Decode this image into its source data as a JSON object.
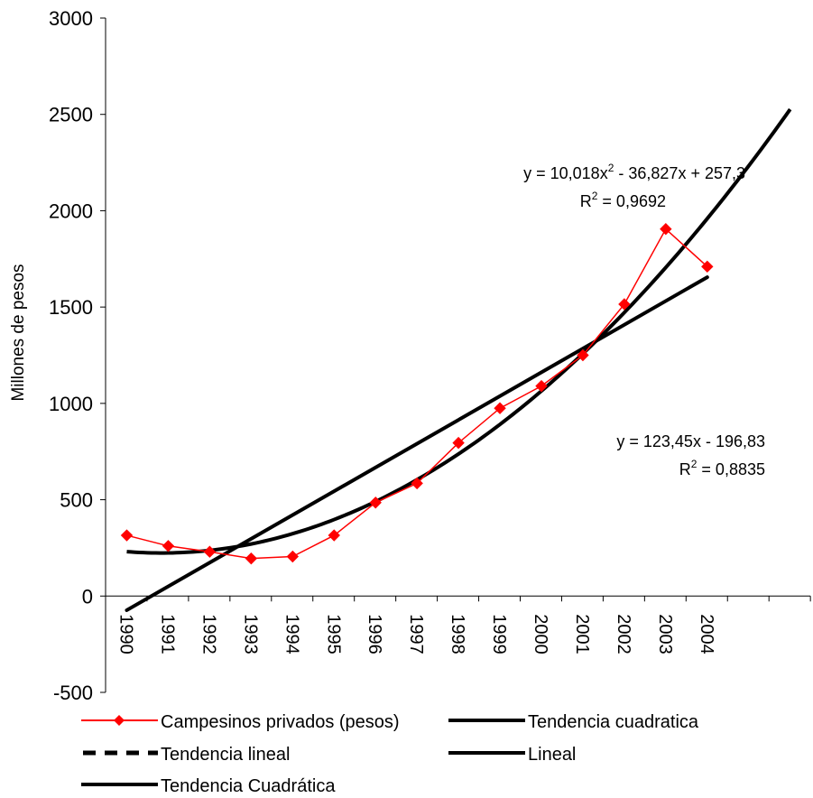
{
  "chart_data": {
    "type": "line",
    "ylabel": "Millones de pesos",
    "ylim": [
      -500,
      3000
    ],
    "yticks": [
      "3000",
      "2500",
      "2000",
      "1500",
      "1000",
      "500",
      "0",
      "-500"
    ],
    "categories": [
      "1990",
      "1991",
      "1992",
      "1993",
      "1994",
      "1995",
      "1996",
      "1997",
      "1998",
      "1999",
      "2000",
      "2001",
      "2002",
      "2003",
      "2004"
    ],
    "series": [
      {
        "name": "Campesinos privados (pesos)",
        "color": "#ff0000",
        "marker": "diamond",
        "values": [
          315,
          260,
          230,
          195,
          205,
          315,
          485,
          585,
          795,
          975,
          1090,
          1250,
          1515,
          1905,
          1710
        ]
      }
    ],
    "trendlines": {
      "quadratic": {
        "a": 10.018,
        "b": -36.827,
        "c": 257.3,
        "x_range": [
          1,
          17
        ]
      },
      "linear": {
        "m": 123.45,
        "b": -196.83,
        "x_range": [
          1,
          15
        ]
      }
    },
    "annotations": {
      "quadratic_equation": {
        "prefix": "y = 10,018x",
        "sup": "2",
        "suffix": " - 36,827x + 257,3"
      },
      "quadratic_r2": {
        "prefix": "R",
        "sup": "2",
        "suffix": " = 0,9692"
      },
      "linear_equation": "y = 123,45x - 196,83",
      "linear_r2": {
        "prefix": "R",
        "sup": "2",
        "suffix": " = 0,8835"
      }
    },
    "legend": {
      "placement": "bottom",
      "entries": [
        {
          "label": "Campesinos privados (pesos)",
          "style": "red-diamond"
        },
        {
          "label": "Tendencia cuadratica",
          "style": "solid-black"
        },
        {
          "label": "Tendencia lineal",
          "style": "dashed-black"
        },
        {
          "label": "Lineal",
          "style": "solid-black"
        },
        {
          "label": "Tendencia Cuadrática",
          "style": "solid-black"
        }
      ]
    },
    "grid": false
  }
}
